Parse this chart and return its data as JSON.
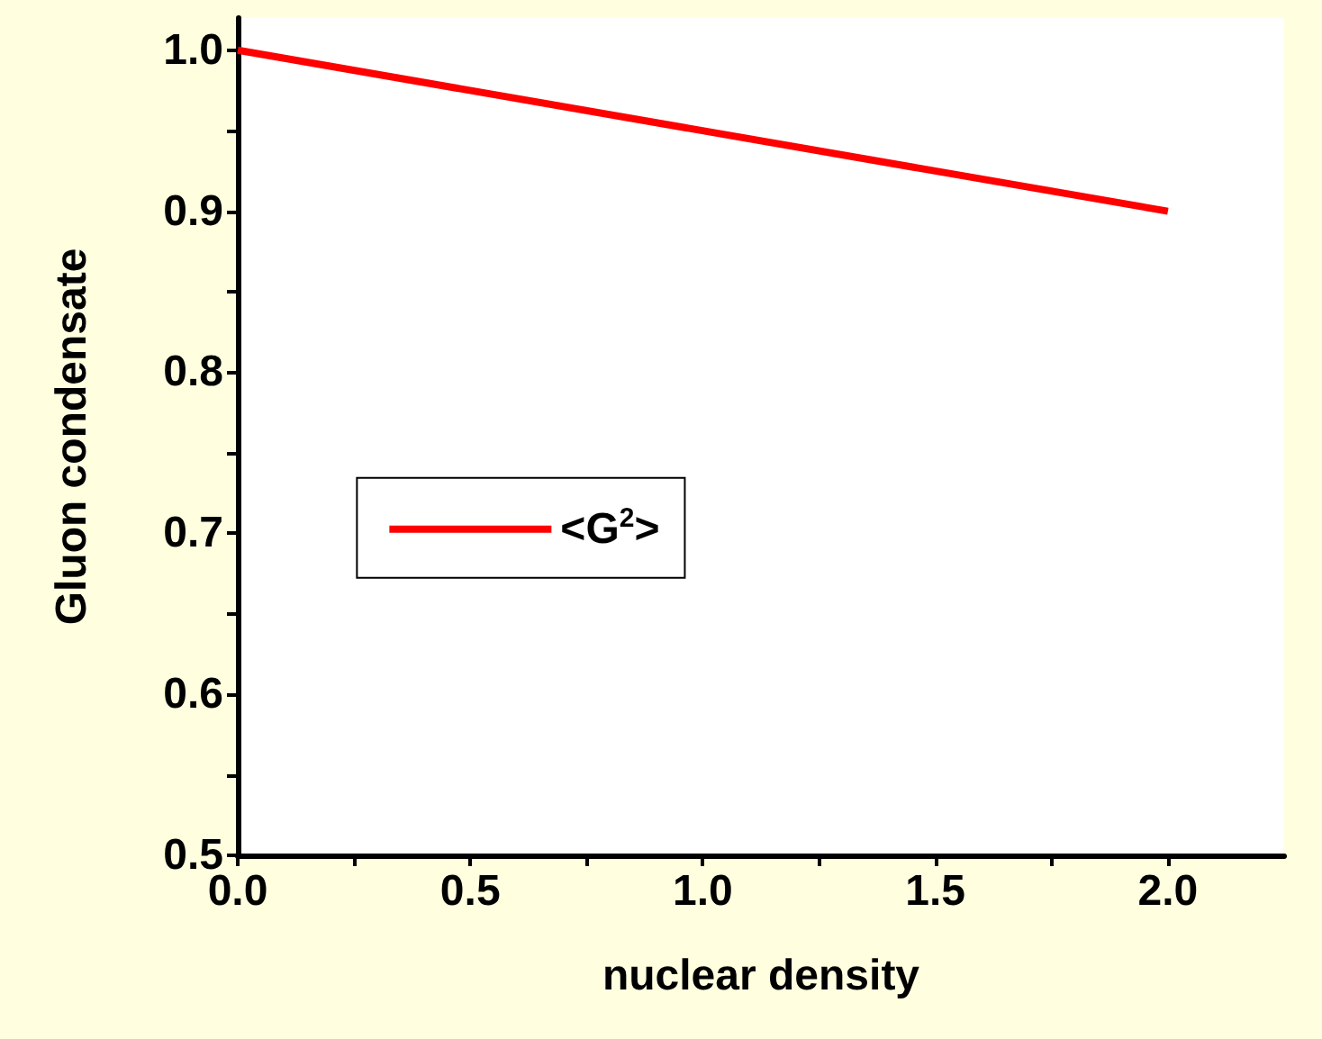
{
  "chart_data": {
    "type": "line",
    "xlabel": "nuclear density",
    "ylabel": "Gluon condensate",
    "series": [
      {
        "name": "<G$^{2}$>",
        "color": "#ff0000",
        "x": [
          0,
          2.0
        ],
        "values": [
          1.0,
          0.9
        ]
      }
    ],
    "xlim": [
      0,
      2.25
    ],
    "ylim": [
      0.5,
      1.02
    ],
    "xticks": [
      {
        "value": 0,
        "label": "0.0"
      },
      {
        "value": 0.25,
        "label": null
      },
      0.5,
      {
        "value": 0.75,
        "label": null
      },
      {
        "value": 1,
        "label": "1.0"
      },
      {
        "value": 1.25,
        "label": null
      },
      1.5,
      {
        "value": 1.75,
        "label": null
      },
      {
        "value": 2,
        "label": "2.0"
      }
    ],
    "yticks": [
      0.5,
      {
        "value": 0.55,
        "label": null
      },
      0.6,
      {
        "value": 0.65,
        "label": null
      },
      0.7,
      {
        "value": 0.75,
        "label": null
      },
      0.8,
      {
        "value": 0.85,
        "label": null
      },
      0.9,
      {
        "value": 0.95,
        "label": null
      },
      {
        "value": 1,
        "label": "1.0"
      }
    ],
    "grid": false,
    "legend": "center",
    "marker": "none",
    "line_style": "solid"
  }
}
